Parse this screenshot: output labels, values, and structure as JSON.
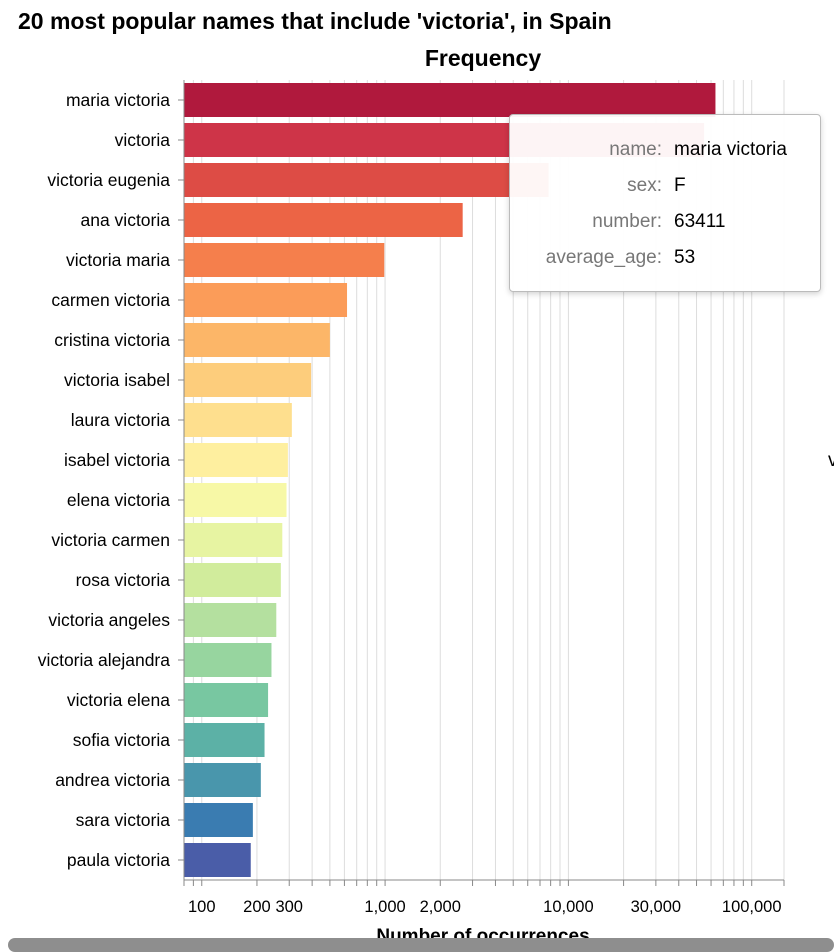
{
  "title": "20 most popular names that include 'victoria', in Spain",
  "chart_data": {
    "type": "bar",
    "orientation": "horizontal",
    "title": "20 most popular names that include 'victoria', in Spain",
    "subtitle": "Frequency",
    "xlabel": "Number of occurrences",
    "ylabel": "",
    "x_scale": "log",
    "xlim": [
      80,
      150000
    ],
    "x_tick_labels": [
      {
        "value": 100,
        "label": "100"
      },
      {
        "value": 200,
        "label": "200"
      },
      {
        "value": 300,
        "label": "300"
      },
      {
        "value": 1000,
        "label": "1,000"
      },
      {
        "value": 2000,
        "label": "2,000"
      },
      {
        "value": 10000,
        "label": "10,000"
      },
      {
        "value": 30000,
        "label": "30,000"
      },
      {
        "value": 100000,
        "label": "100,000"
      }
    ],
    "grid": true,
    "color_scheme": "spectral",
    "categories": [
      "maria victoria",
      "victoria",
      "victoria eugenia",
      "ana victoria",
      "victoria maria",
      "carmen victoria",
      "cristina victoria",
      "victoria isabel",
      "laura victoria",
      "isabel victoria",
      "elena victoria",
      "victoria carmen",
      "rosa victoria",
      "victoria angeles",
      "victoria alejandra",
      "victoria elena",
      "sofia victoria",
      "andrea victoria",
      "sara victoria",
      "paula victoria"
    ],
    "values": [
      63411,
      55000,
      7800,
      2650,
      990,
      620,
      500,
      395,
      310,
      295,
      290,
      275,
      270,
      255,
      240,
      230,
      220,
      210,
      190,
      185
    ],
    "colors": [
      "#b0193d",
      "#ce3448",
      "#dd4c45",
      "#ec6445",
      "#f57f4c",
      "#fb9c59",
      "#fcb668",
      "#fdcd7c",
      "#fedf8e",
      "#feef9f",
      "#f7f8a6",
      "#e7f4a2",
      "#d1ec9c",
      "#b4e09f",
      "#97d59f",
      "#78c7a1",
      "#5cb1a6",
      "#4996ac",
      "#3a7cb1",
      "#4a5da8"
    ]
  },
  "tooltip": {
    "rows": [
      {
        "key": "name:",
        "value": "maria victoria"
      },
      {
        "key": "sex:",
        "value": "F"
      },
      {
        "key": "number:",
        "value": "63411"
      },
      {
        "key": "average_age:",
        "value": "53"
      }
    ]
  },
  "cutoff_glyph": "v"
}
